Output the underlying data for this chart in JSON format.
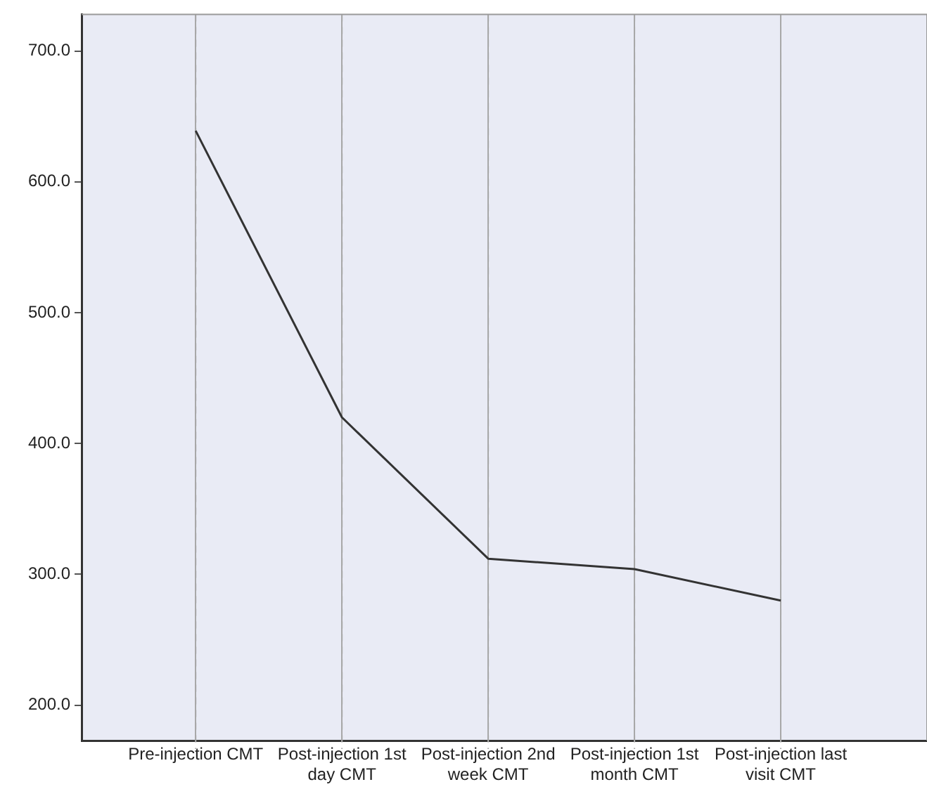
{
  "chart_data": {
    "type": "line",
    "categories": [
      "Pre-injection CMT",
      "Post-injection 1st day CMT",
      "Post-injection 2nd week CMT",
      "Post-injection 1st month CMT",
      "Post-injection last visit CMT"
    ],
    "series": [
      {
        "color": "#333333",
        "values": [
          639,
          420,
          312,
          304,
          280
        ]
      }
    ],
    "ylim": [
      173,
      728
    ],
    "yticks": [
      {
        "value": 200,
        "label": "200.0"
      },
      {
        "value": 300,
        "label": "300.0"
      },
      {
        "value": 400,
        "label": "400.0"
      },
      {
        "value": 500,
        "label": "500.0"
      },
      {
        "value": 600,
        "label": "600.0"
      },
      {
        "value": 700,
        "label": "700.0"
      }
    ],
    "grid": "x",
    "legend": false,
    "marker": "none",
    "line_style": "solid"
  }
}
